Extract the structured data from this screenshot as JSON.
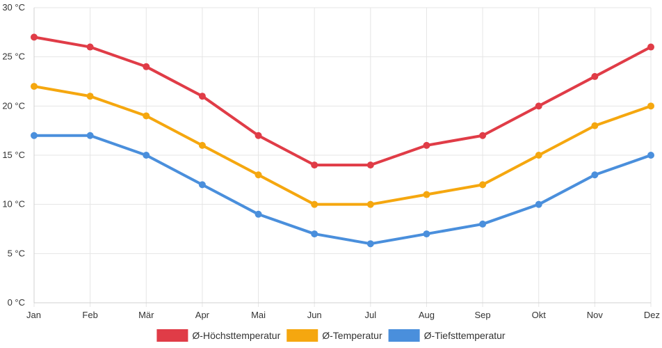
{
  "chart_data": {
    "type": "line",
    "title": "",
    "xlabel": "",
    "ylabel": "",
    "categories": [
      "Jan",
      "Feb",
      "Mär",
      "Apr",
      "Mai",
      "Jun",
      "Jul",
      "Aug",
      "Sep",
      "Okt",
      "Nov",
      "Dez"
    ],
    "ylim": [
      0,
      30
    ],
    "yticks": [
      0,
      5,
      10,
      15,
      20,
      25,
      30
    ],
    "ytick_labels": [
      "0 °C",
      "5 °C",
      "10 °C",
      "15 °C",
      "20 °C",
      "25 °C",
      "30 °C"
    ],
    "grid": true,
    "legend_position": "bottom",
    "series": [
      {
        "name": "Ø-Höchsttemperatur",
        "color": "#e03c47",
        "values": [
          27,
          26,
          24,
          21,
          17,
          14,
          14,
          16,
          17,
          20,
          23,
          26
        ]
      },
      {
        "name": "Ø-Temperatur",
        "color": "#f5a70f",
        "values": [
          22,
          21,
          19,
          16,
          13,
          10,
          10,
          11,
          12,
          15,
          18,
          20
        ]
      },
      {
        "name": "Ø-Tiefsttemperatur",
        "color": "#4a8fdc",
        "values": [
          17,
          17,
          15,
          12,
          9,
          7,
          6,
          7,
          8,
          10,
          13,
          15
        ]
      }
    ]
  }
}
